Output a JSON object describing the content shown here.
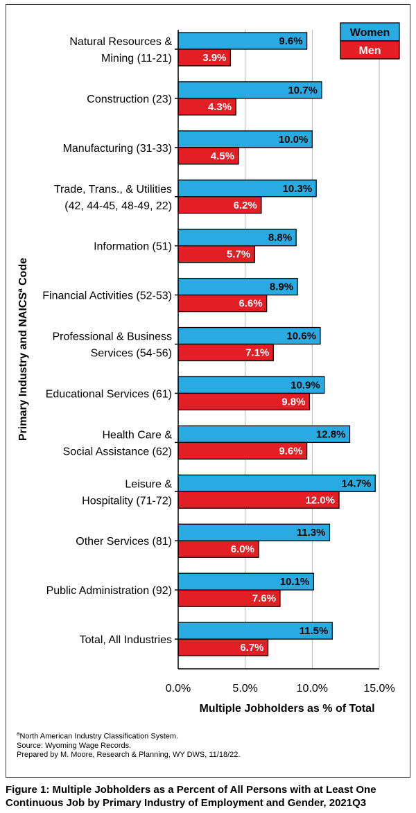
{
  "chart_data": {
    "type": "bar",
    "orientation": "horizontal",
    "categories": [
      [
        "Natural Resources &",
        "Mining (11-21)"
      ],
      [
        "Construction (23)"
      ],
      [
        "Manufacturing (31-33)"
      ],
      [
        "Trade, Trans., & Utilities",
        "(42, 44-45, 48-49, 22)"
      ],
      [
        "Information (51)"
      ],
      [
        "Financial Activities (52-53)"
      ],
      [
        "Professional & Business",
        "Services (54-56)"
      ],
      [
        "Educational Services (61)"
      ],
      [
        "Health Care &",
        "Social Assistance (62)"
      ],
      [
        "Leisure &",
        "Hospitality (71-72)"
      ],
      [
        "Other Services (81)"
      ],
      [
        "Public Administration (92)"
      ],
      [
        "Total, All Industries"
      ]
    ],
    "series": [
      {
        "name": "Women",
        "color": "#29abe2",
        "values": [
          9.6,
          10.7,
          10.0,
          10.3,
          8.8,
          8.9,
          10.6,
          10.9,
          12.8,
          14.7,
          11.3,
          10.1,
          11.5
        ],
        "labels": [
          "9.6%",
          "10.7%",
          "10.0%",
          "10.3%",
          "8.8%",
          "8.9%",
          "10.6%",
          "10.9%",
          "12.8%",
          "14.7%",
          "11.3%",
          "10.1%",
          "11.5%"
        ],
        "label_color": "#000000"
      },
      {
        "name": "Men",
        "color": "#e31e24",
        "values": [
          3.9,
          4.3,
          4.5,
          6.2,
          5.7,
          6.6,
          7.1,
          9.8,
          9.6,
          12.0,
          6.0,
          7.6,
          6.7
        ],
        "labels": [
          "3.9%",
          "4.3%",
          "4.5%",
          "6.2%",
          "5.7%",
          "6.6%",
          "7.1%",
          "9.8%",
          "9.6%",
          "12.0%",
          "6.0%",
          "7.6%",
          "6.7%"
        ],
        "label_color": "#ffffff"
      }
    ],
    "xlim": [
      0,
      15
    ],
    "xticks": [
      0,
      5,
      10,
      15
    ],
    "xtick_labels": [
      "0.0%",
      "5.0%",
      "10.0%",
      "15.0%"
    ],
    "xlabel": "Multiple Jobholders as % of Total",
    "ylabel": "Primary Industry and NAICS",
    "ylabel_sup": "a",
    "ylabel_suffix": " Code",
    "grid": "vertical",
    "legend": "top-right"
  },
  "notes": {
    "sup": "a",
    "line1": "North American Industry Classification System.",
    "line2": "Source: Wyoming Wage Records.",
    "line3": "Prepared by M. Moore, Research & Planning, WY DWS, 11/18/22."
  },
  "caption": {
    "line1": "Figure 1: Multiple Jobholders as a Percent of All Persons with at Least One",
    "line2": "Continuous Job by Primary Industry of Employment and Gender, 2021Q3"
  }
}
